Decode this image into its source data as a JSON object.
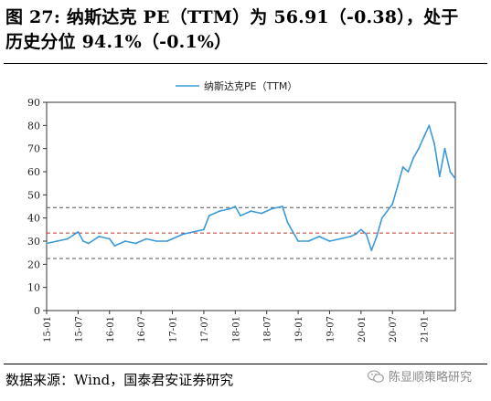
{
  "header": {
    "title_line1": "图 27:  纳斯达克 PE（TTM）为 56.91（-0.38），处于",
    "title_line2": "历史分位 94.1%（-0.1%）"
  },
  "footer": {
    "source": "数据来源：Wind，国泰君安证券研究",
    "watermark": "陈显顺策略研究",
    "watermark_icon": "wechat-icon"
  },
  "chart_data": {
    "type": "line",
    "legend": {
      "label": "纳斯达克PE（TTM）",
      "position": "top-center"
    },
    "ylim": [
      0,
      90
    ],
    "yticks": [
      0,
      10,
      20,
      30,
      40,
      50,
      60,
      70,
      80,
      90
    ],
    "xlim": [
      "2015-01",
      "2021-07"
    ],
    "xticks": [
      "15-01",
      "15-07",
      "16-01",
      "16-07",
      "17-01",
      "17-07",
      "18-01",
      "18-07",
      "19-01",
      "19-07",
      "20-01",
      "20-07",
      "21-01"
    ],
    "grid": false,
    "line_color": "#3b9ad9",
    "ref_line_color_outer": "#555555",
    "ref_line_color_mid": "#c0392b",
    "reference_lines": [
      22.5,
      33.5,
      44.5
    ],
    "series": [
      {
        "name": "纳斯达克PE（TTM）",
        "x": [
          "2015-01",
          "2015-03",
          "2015-05",
          "2015-07",
          "2015-08",
          "2015-09",
          "2015-11",
          "2016-01",
          "2016-02",
          "2016-04",
          "2016-06",
          "2016-08",
          "2016-10",
          "2016-12",
          "2017-01",
          "2017-03",
          "2017-05",
          "2017-07",
          "2017-08",
          "2017-10",
          "2017-12",
          "2018-01",
          "2018-02",
          "2018-04",
          "2018-06",
          "2018-08",
          "2018-10",
          "2018-11",
          "2018-12",
          "2019-01",
          "2019-03",
          "2019-05",
          "2019-07",
          "2019-09",
          "2019-11",
          "2019-12",
          "2020-01",
          "2020-02",
          "2020-03",
          "2020-04",
          "2020-05",
          "2020-07",
          "2020-08",
          "2020-09",
          "2020-10",
          "2020-11",
          "2020-12",
          "2021-01",
          "2021-02",
          "2021-03",
          "2021-04",
          "2021-05",
          "2021-06",
          "2021-07"
        ],
        "values": [
          29,
          30,
          31,
          34,
          30,
          29,
          32,
          31,
          28,
          30,
          29,
          31,
          30,
          30,
          31,
          33,
          34,
          35,
          41,
          43,
          44,
          45,
          41,
          43,
          42,
          44,
          45,
          38,
          34,
          30,
          30,
          32,
          30,
          31,
          32,
          33,
          35,
          33,
          26,
          32,
          40,
          46,
          54,
          62,
          60,
          66,
          70,
          75,
          80,
          72,
          58,
          70,
          60,
          57
        ]
      }
    ]
  }
}
